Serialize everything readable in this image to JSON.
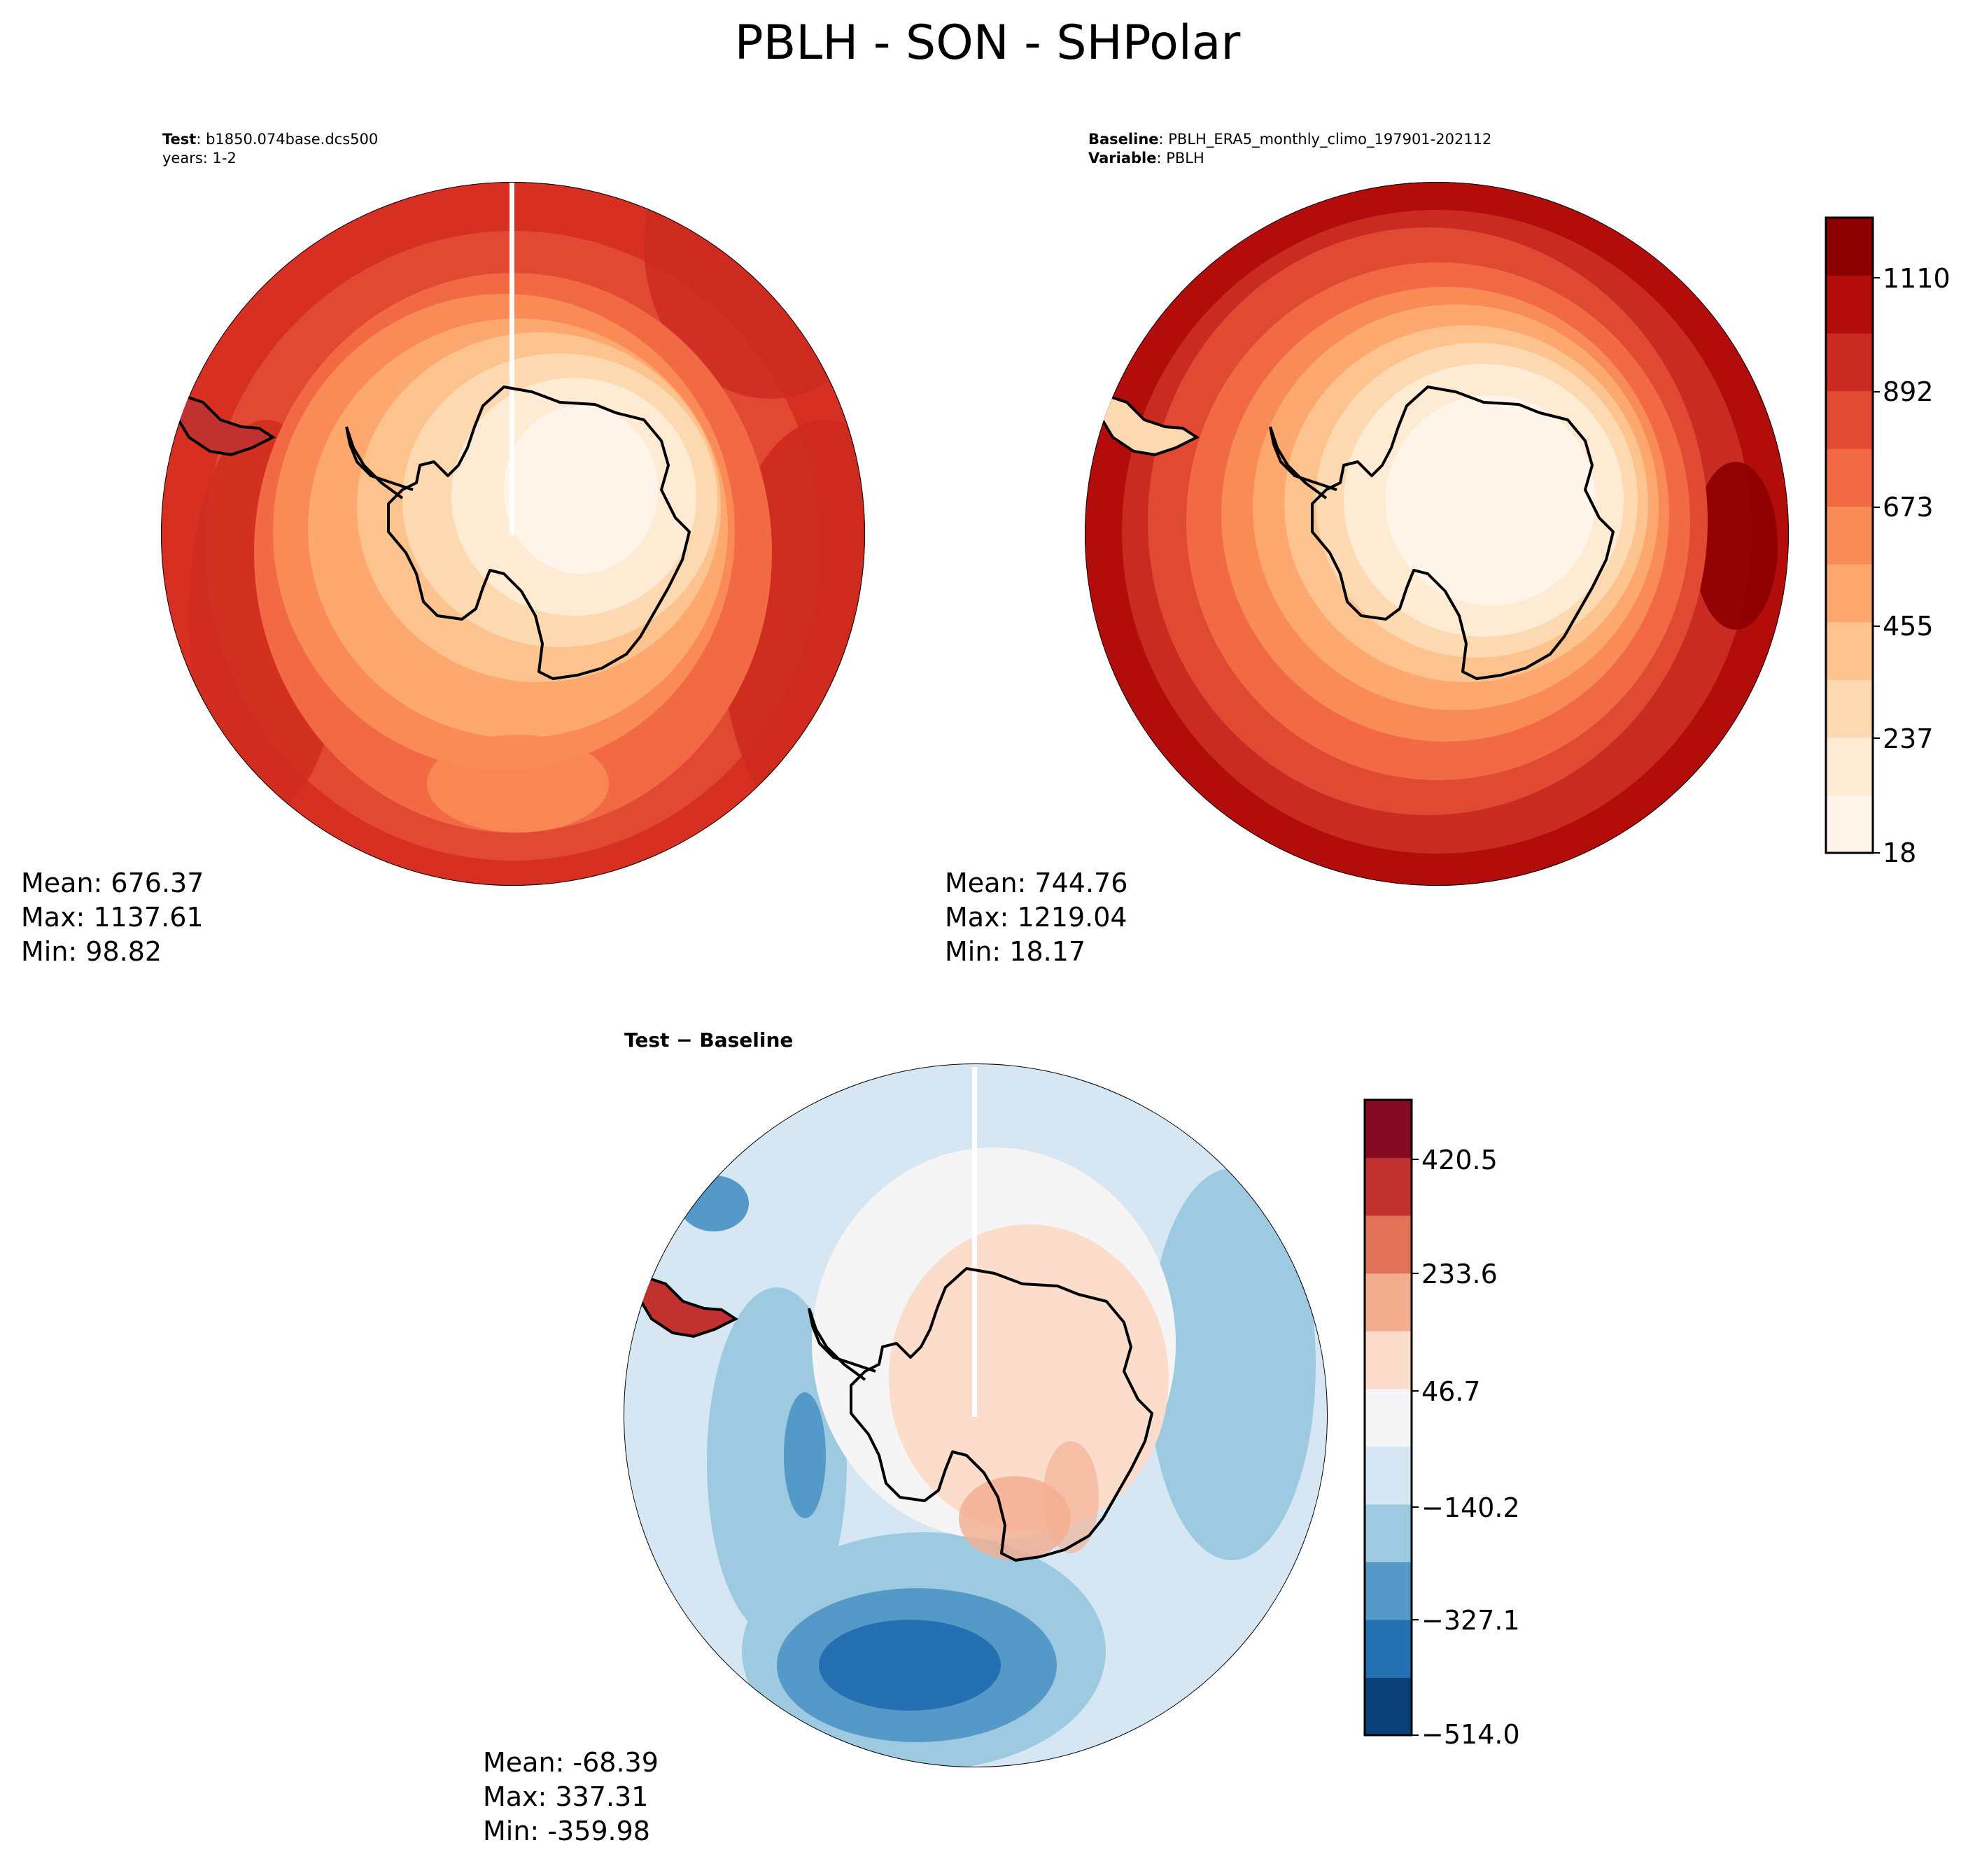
{
  "figure": {
    "title": "PBLH - SON - SHPolar"
  },
  "panels": {
    "test": {
      "label_bold": "Test",
      "label_value": ": b1850.074base.dcs500",
      "years": "years: 1-2",
      "stats": {
        "mean": "Mean: 676.37",
        "max": "Max: 1137.61",
        "min": "Min: 98.82"
      }
    },
    "baseline": {
      "label_bold": "Baseline",
      "label_value": ": PBLH_ERA5_monthly_climo_197901-202112",
      "variable_bold": "Variable",
      "variable_value": ": PBLH",
      "stats": {
        "mean": "Mean: 744.76",
        "max": "Max: 1219.04",
        "min": "Min: 18.17"
      }
    },
    "difference": {
      "title": "Test − Baseline",
      "stats": {
        "mean": "Mean: -68.39",
        "max": "Max: 337.31",
        "min": "Min: -359.98"
      }
    }
  },
  "colorbars": {
    "main": {
      "ticks": [
        "1110",
        "892",
        "673",
        "455",
        "237",
        "18"
      ],
      "colors": [
        "#fff5eb",
        "#feebd3",
        "#fdd9b1",
        "#fdc38e",
        "#fca86f",
        "#f98b56",
        "#f26a44",
        "#e04a33",
        "#ca2b20",
        "#b20c0b",
        "#8c0000"
      ]
    },
    "diff": {
      "ticks": [
        "420.5",
        "233.6",
        "46.7",
        "−140.2",
        "−327.1",
        "−514.0"
      ],
      "colors": [
        "#0b3f7a",
        "#2470b3",
        "#5499c7",
        "#9ecae1",
        "#d6e7f3",
        "#f5f5f5",
        "#fcdccb",
        "#f3ad8e",
        "#e07258",
        "#c1312f",
        "#870a24"
      ]
    }
  }
}
